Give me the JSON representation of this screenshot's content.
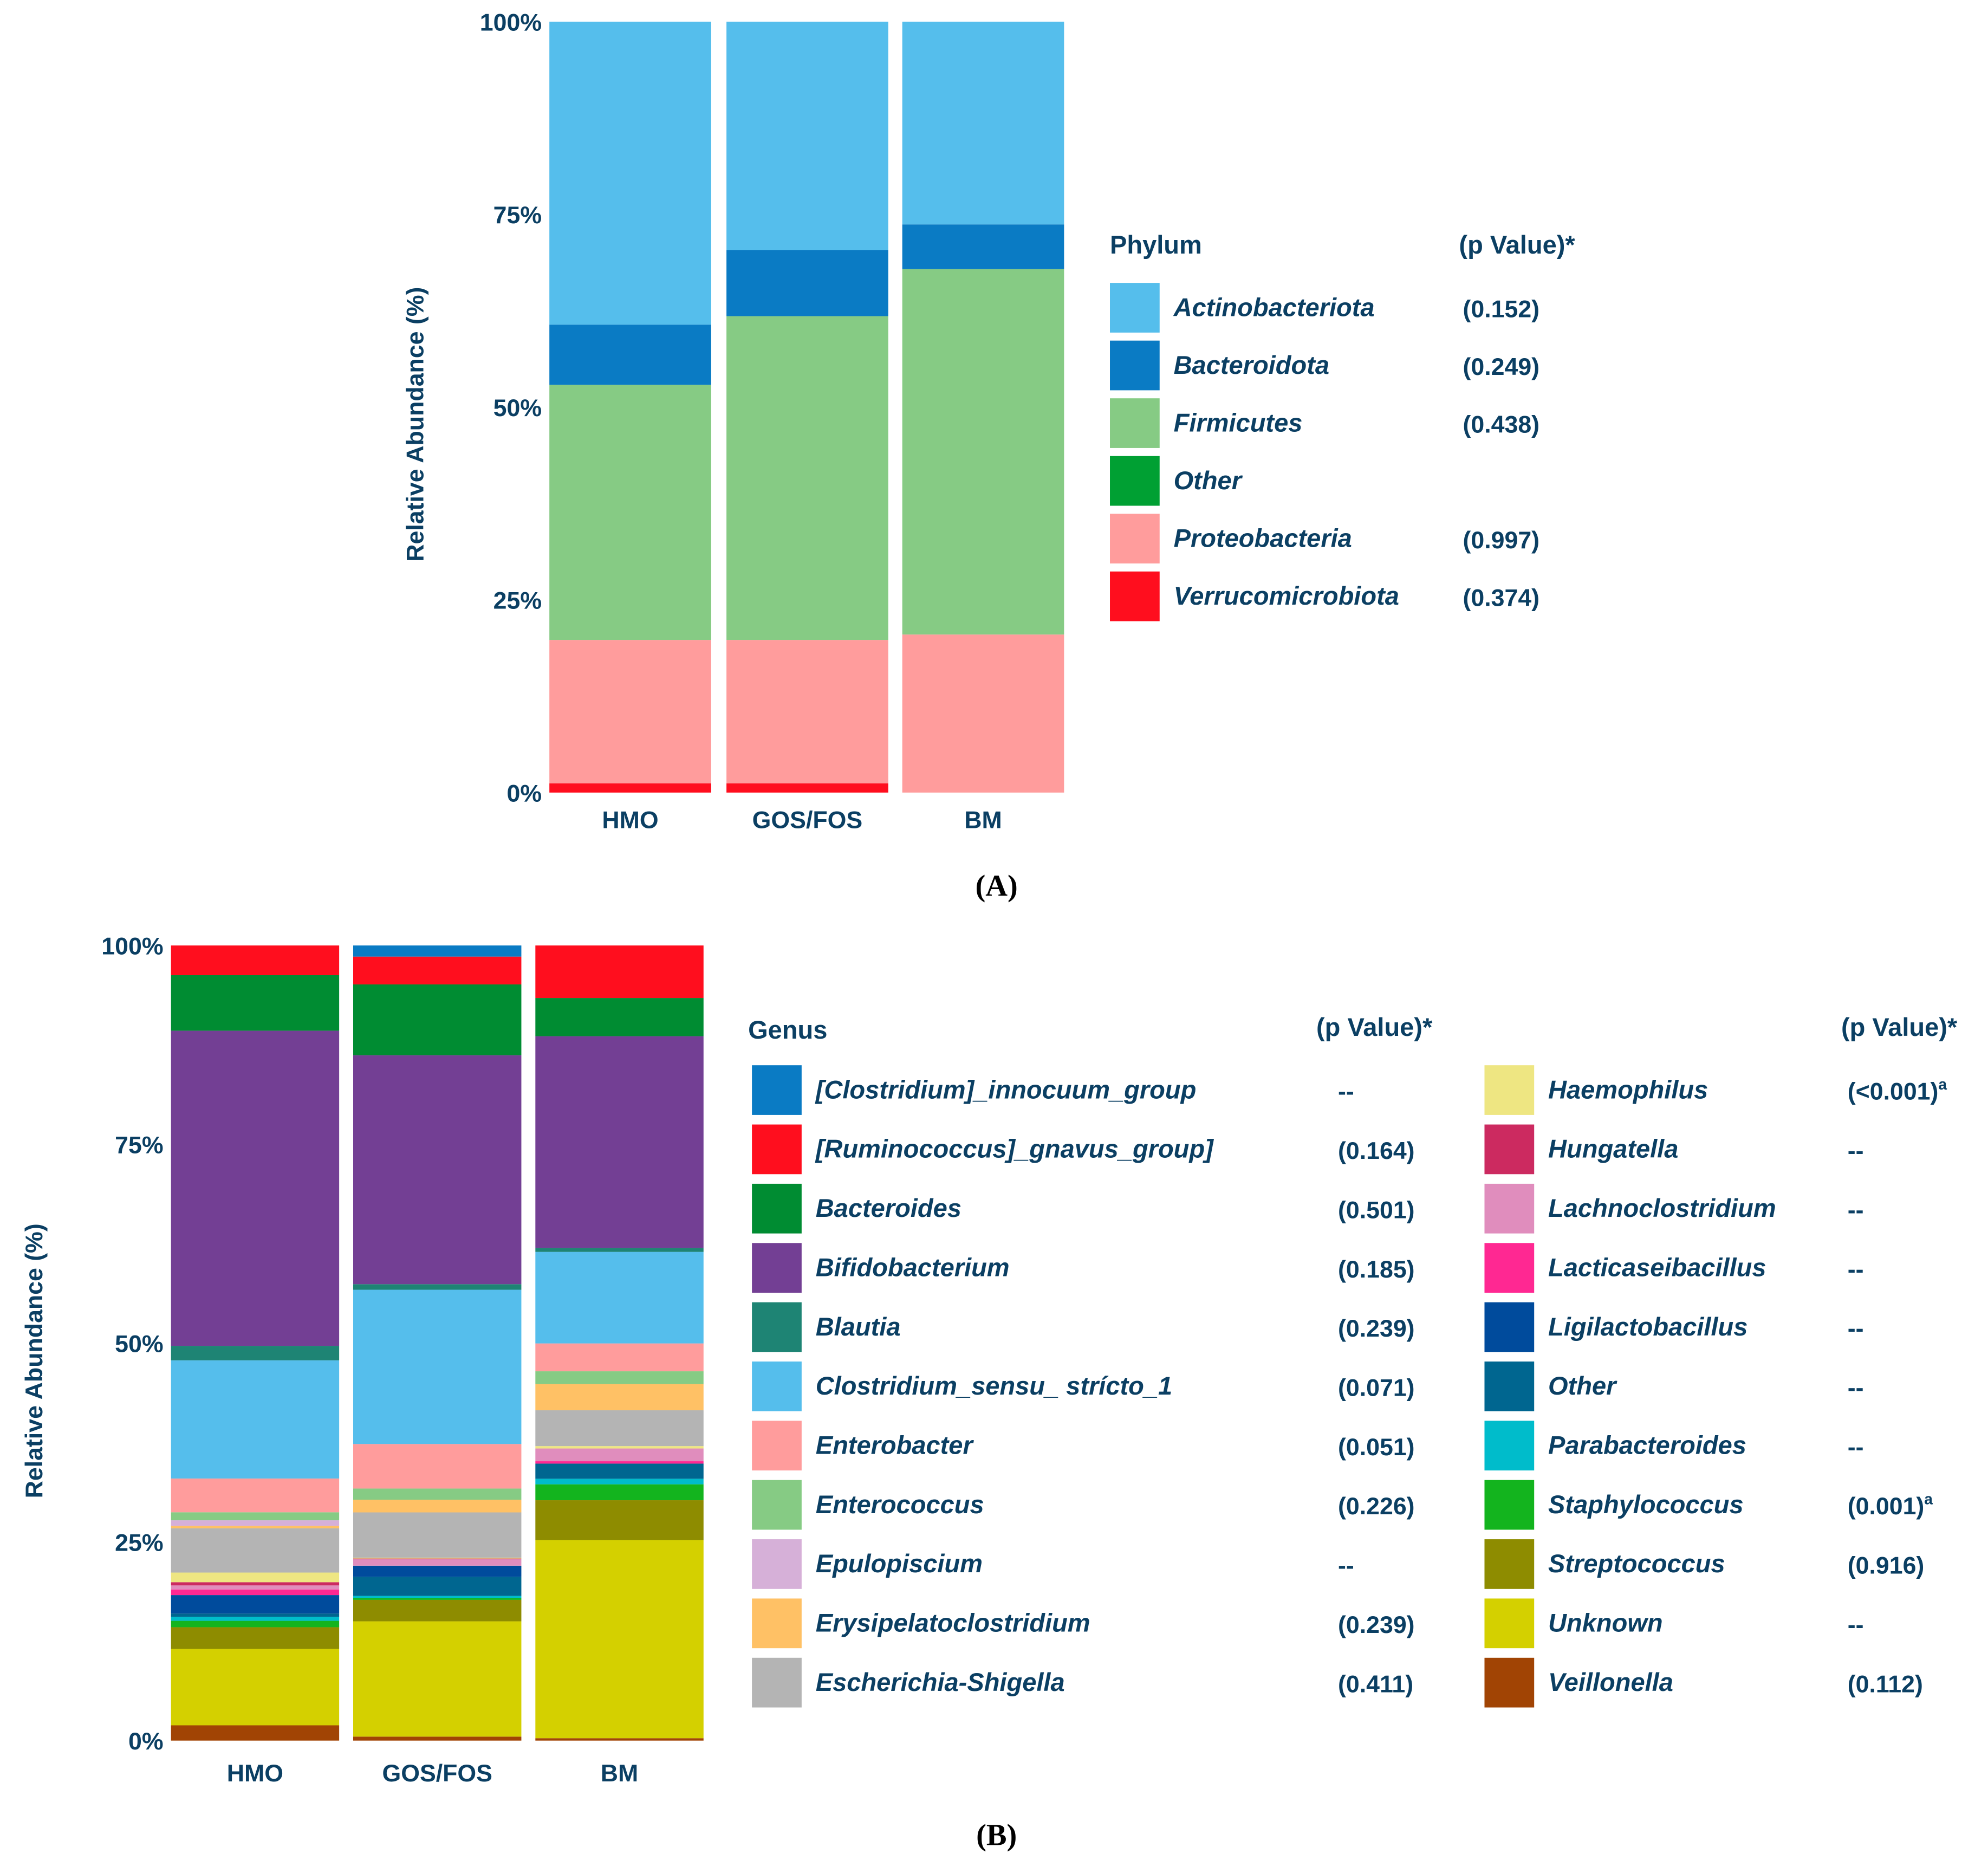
{
  "chart_data": [
    {
      "type": "bar",
      "stacked": true,
      "panel_label": "(A)",
      "categories": [
        "HMO",
        "GOS/FOS",
        "BM"
      ],
      "ylabel": "Relative Abundance (%)",
      "xlabel": "",
      "ylim": [
        0,
        100
      ],
      "yticks": [
        "0%",
        "25%",
        "50%",
        "75%",
        "100%"
      ],
      "legend_title": "Phylum",
      "pvalue_header": "(p Value)*",
      "legend_placement": "right",
      "series": [
        {
          "name": "Actinobacteriota",
          "p": "(0.152)",
          "sup": "",
          "color": "#55BEEC",
          "values": [
            39.3,
            29.6,
            26.3
          ]
        },
        {
          "name": "Bacteroidota",
          "p": "(0.249)",
          "sup": "",
          "color": "#0A7BC4",
          "values": [
            7.8,
            8.6,
            5.8
          ]
        },
        {
          "name": "Firmicutes",
          "p": "(0.438)",
          "sup": "",
          "color": "#86CB84",
          "values": [
            33.1,
            42.0,
            47.4
          ]
        },
        {
          "name": "Other",
          "p": "",
          "sup": "",
          "color": "#00A033",
          "values": [
            0,
            0,
            0
          ]
        },
        {
          "name": "Proteobacteria",
          "p": "(0.997)",
          "sup": "",
          "color": "#FF9C9C",
          "values": [
            18.6,
            18.6,
            20.5
          ]
        },
        {
          "name": "Verrucomicrobiota",
          "p": "(0.374)",
          "sup": "",
          "color": "#FF0E1E",
          "values": [
            1.2,
            1.2,
            0
          ]
        }
      ]
    },
    {
      "type": "bar",
      "stacked": true,
      "panel_label": "(B)",
      "categories": [
        "HMO",
        "GOS/FOS",
        "BM"
      ],
      "ylabel": "Relative Abundance (%)",
      "xlabel": "",
      "ylim": [
        0,
        100
      ],
      "yticks": [
        "0%",
        "25%",
        "50%",
        "75%",
        "100%"
      ],
      "legend_title": "Genus",
      "pvalue_header": "(p Value)*",
      "legend_placement": "right",
      "series": [
        {
          "name": "[Clostridium]_innocuum_group",
          "p": "--",
          "sup": "",
          "color": "#0A7BC4",
          "values": [
            0,
            1.4,
            0
          ]
        },
        {
          "name": "[Ruminococcus]_gnavus_group]",
          "p": "(0.164)",
          "sup": "",
          "color": "#FF0E1E",
          "values": [
            3.7,
            3.5,
            6.6
          ]
        },
        {
          "name": "Bacteroides",
          "p": "(0.501)",
          "sup": "",
          "color": "#008C32",
          "values": [
            6.9,
            8.9,
            4.8
          ]
        },
        {
          "name": "Bifidobacterium",
          "p": "(0.185)",
          "sup": "",
          "color": "#733F94",
          "values": [
            39.2,
            28.8,
            26.6
          ]
        },
        {
          "name": "Blautia",
          "p": "(0.239)",
          "sup": "",
          "color": "#1E8474",
          "values": [
            1.8,
            0.7,
            0.5
          ]
        },
        {
          "name": "Clostridium_sensu_ strícto_1",
          "p": "(0.071)",
          "sup": "",
          "color": "#55BEEC",
          "values": [
            14.7,
            19.4,
            11.5
          ]
        },
        {
          "name": "Enterobacter",
          "p": "(0.051)",
          "sup": "",
          "color": "#FF9C9C",
          "values": [
            4.2,
            5.6,
            3.5
          ]
        },
        {
          "name": "Enterococcus",
          "p": "(0.226)",
          "sup": "",
          "color": "#86CB84",
          "values": [
            1.0,
            1.4,
            1.6
          ]
        },
        {
          "name": "Epulopiscium",
          "p": "--",
          "sup": "",
          "color": "#D6B0D8",
          "values": [
            0.7,
            0,
            0
          ]
        },
        {
          "name": "Erysipelatoclostridium",
          "p": "(0.239)",
          "sup": "",
          "color": "#FFC165",
          "values": [
            0.3,
            1.6,
            3.3
          ]
        },
        {
          "name": "Escherichia-Shigella",
          "p": "(0.411)",
          "sup": "",
          "color": "#B4B4B4",
          "values": [
            5.5,
            5.7,
            4.5
          ]
        },
        {
          "name": "Haemophilus",
          "p": "(<0.001)",
          "sup": "a",
          "color": "#EEE682",
          "values": [
            1.2,
            0.1,
            0.3
          ]
        },
        {
          "name": "Hungatella",
          "p": "--",
          "sup": "",
          "color": "#CC2A60",
          "values": [
            0.4,
            0.1,
            0
          ]
        },
        {
          "name": "Lachnoclostridium",
          "p": "--",
          "sup": "",
          "color": "#E08DBD",
          "values": [
            0.5,
            0.8,
            1.6
          ]
        },
        {
          "name": "Lacticaseibacillus",
          "p": "--",
          "sup": "",
          "color": "#FF2892",
          "values": [
            0.7,
            0,
            0.3
          ]
        },
        {
          "name": "Ligilactobacillus",
          "p": "--",
          "sup": "",
          "color": "#004B9C",
          "values": [
            2.3,
            1.4,
            0
          ]
        },
        {
          "name": "Other",
          "p": "--",
          "sup": "",
          "color": "#006690",
          "values": [
            0.4,
            2.4,
            1.9
          ]
        },
        {
          "name": "Parabacteroides",
          "p": "--",
          "sup": "",
          "color": "#00BCCB",
          "values": [
            0.5,
            0.3,
            0.7
          ]
        },
        {
          "name": "Staphylococcus",
          "p": "(0.001)",
          "sup": "a",
          "color": "#13B41E",
          "values": [
            0.8,
            0.2,
            2.0
          ]
        },
        {
          "name": "Streptococcus",
          "p": "(0.916)",
          "sup": "",
          "color": "#8E8C00",
          "values": [
            2.7,
            2.7,
            5.0
          ]
        },
        {
          "name": "Unknown",
          "p": "--",
          "sup": "",
          "color": "#D4D000",
          "values": [
            9.5,
            14.5,
            24.9
          ]
        },
        {
          "name": "Veillonella",
          "p": "(0.112)",
          "sup": "",
          "color": "#A14404",
          "values": [
            1.9,
            0.5,
            0.3
          ]
        }
      ]
    }
  ]
}
